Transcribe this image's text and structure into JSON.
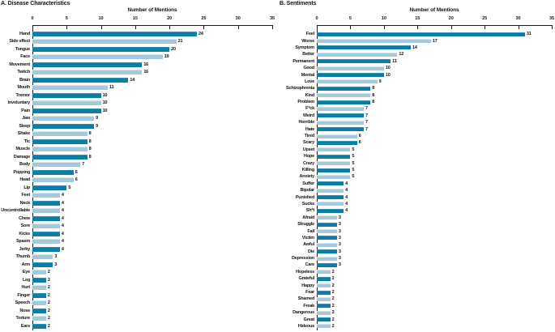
{
  "colors": {
    "bar_dark": "#0c7da5",
    "bar_dark_top": "#2d8fae",
    "bar_light": "#a5c8da",
    "bar_light_top": "#d5e4ee",
    "axis": "#1a1a1a",
    "text": "#111111"
  },
  "chart_data": [
    {
      "type": "bar",
      "orientation": "horizontal",
      "title": "A. Disease Characteristics",
      "xlabel": "Number of Mentions",
      "ylabel": "",
      "xlim": [
        0,
        35
      ],
      "ticks": [
        0,
        5,
        10,
        15,
        20,
        25,
        30,
        35
      ],
      "grid": false,
      "value_labels": true,
      "legend": "none",
      "categories": [
        "Hand",
        "Side effect",
        "Tongue",
        "Face",
        "Movement",
        "Twitch",
        "Brain",
        "Mouth",
        "Tremor",
        "Involuntary",
        "Pain",
        "Jaw",
        "Sleep",
        "Shake",
        "Tic",
        "Muscle",
        "Damage",
        "Body",
        "Popping",
        "Head",
        "Lip",
        "Feet",
        "Neck",
        "Uncontrollable",
        "Chew",
        "Sore",
        "Kicks",
        "Spasm",
        "Jerky",
        "Thumb",
        "Arm",
        "Eye",
        "Leg",
        "Hurt",
        "Finger",
        "Speech",
        "Nose",
        "Torture",
        "Ears"
      ],
      "values": [
        24,
        21,
        20,
        19,
        16,
        16,
        14,
        11,
        10,
        10,
        10,
        9,
        9,
        8,
        8,
        8,
        8,
        7,
        6,
        6,
        5,
        4,
        4,
        4,
        4,
        4,
        4,
        4,
        4,
        3,
        3,
        2,
        2,
        2,
        2,
        2,
        2,
        2,
        2
      ]
    },
    {
      "type": "bar",
      "orientation": "horizontal",
      "title": "B. Sentiments",
      "xlabel": "Number of Mentions",
      "ylabel": "",
      "xlim": [
        0,
        35
      ],
      "ticks": [
        0,
        5,
        10,
        15,
        20,
        25,
        30,
        35
      ],
      "grid": false,
      "value_labels": true,
      "legend": "none",
      "categories": [
        "Feel",
        "Worse",
        "Symptom",
        "Better",
        "Permanent",
        "Good",
        "Mental",
        "Love",
        "Schizophrenia",
        "Kind",
        "Problem",
        "F*ck",
        "Weird",
        "Horrible",
        "Hate",
        "Tired",
        "Scary",
        "Upset",
        "Hope",
        "Crazy",
        "Killing",
        "Anxiety",
        "Suffer",
        "Bipolar",
        "Punished",
        "Sucks",
        "Sh*t",
        "Afraid",
        "Struggle",
        "Fail",
        "Victim",
        "Awful",
        "Die",
        "Depression",
        "Care",
        "Hopeless",
        "Grateful",
        "Happy",
        "Fear",
        "Shamed",
        "Freak",
        "Dangerous",
        "Great",
        "Hideous"
      ],
      "values": [
        31,
        17,
        14,
        12,
        11,
        10,
        10,
        9,
        8,
        8,
        8,
        7,
        7,
        7,
        7,
        6,
        6,
        5,
        5,
        5,
        5,
        5,
        4,
        4,
        4,
        4,
        4,
        3,
        3,
        3,
        3,
        3,
        3,
        3,
        3,
        2,
        2,
        2,
        2,
        2,
        2,
        2,
        2,
        2
      ]
    }
  ]
}
